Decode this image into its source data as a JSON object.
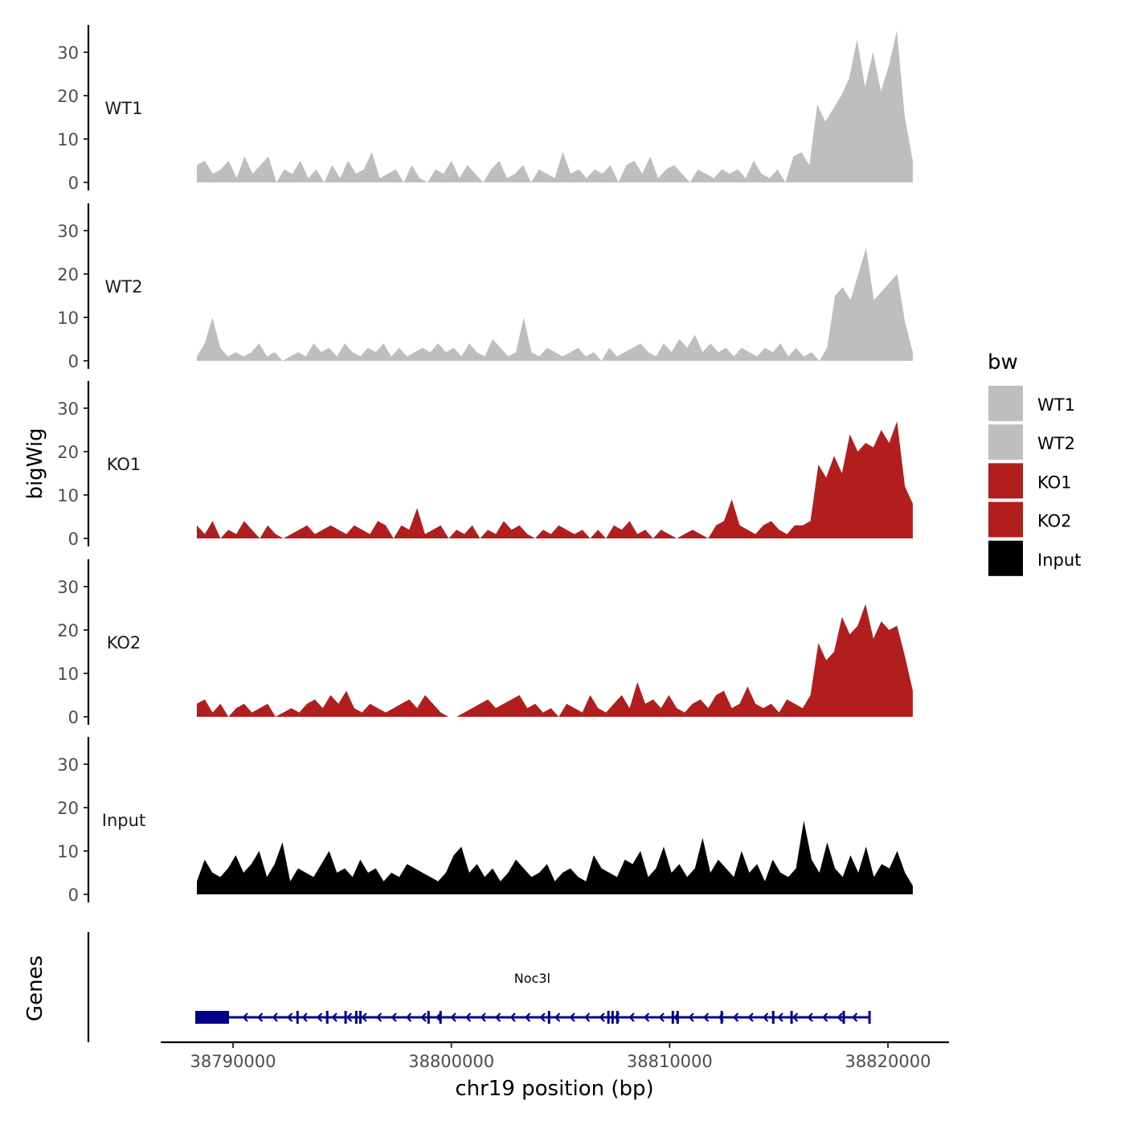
{
  "chart_data": {
    "type": "area",
    "title": "",
    "xlabel": "chr19 position (bp)",
    "ylabel": "bigWig",
    "gene_panel_label": "Genes",
    "xlim": [
      38787900,
      38823000
    ],
    "x_ticks": [
      38790000,
      38800000,
      38810000,
      38820000
    ],
    "x_tick_labels": [
      "38790000",
      "38800000",
      "38810000",
      "38820000"
    ],
    "ylim": [
      0,
      36
    ],
    "y_ticks": [
      0,
      10,
      20,
      30
    ],
    "y_tick_labels": [
      "0",
      "10",
      "20",
      "30"
    ],
    "data_start": 38788344,
    "data_end": 38821137,
    "legend": {
      "title": "bw",
      "position": "right",
      "entries": [
        "WT1",
        "WT2",
        "KO1",
        "KO2",
        "Input"
      ]
    },
    "series": [
      {
        "name": "WT1",
        "color": "#bebebe",
        "values": [
          4,
          5,
          2,
          3,
          5,
          1,
          6,
          2,
          4,
          6,
          0,
          3,
          2,
          5,
          1,
          3,
          0,
          4,
          1,
          5,
          2,
          3,
          7,
          1,
          2,
          3,
          0,
          4,
          1,
          0,
          3,
          2,
          5,
          1,
          4,
          2,
          0,
          3,
          5,
          1,
          2,
          4,
          0,
          3,
          2,
          1,
          7,
          2,
          3,
          1,
          3,
          2,
          4,
          0,
          4,
          5,
          2,
          6,
          1,
          3,
          4,
          2,
          0,
          3,
          2,
          1,
          3,
          2,
          3,
          1,
          5,
          2,
          1,
          3,
          0,
          6,
          7,
          4,
          18,
          14,
          17,
          20,
          24,
          33,
          22,
          30,
          21,
          27,
          35,
          15,
          5
        ]
      },
      {
        "name": "WT2",
        "color": "#bebebe",
        "values": [
          1,
          4,
          10,
          3,
          1,
          2,
          1,
          2,
          4,
          1,
          2,
          0,
          1,
          2,
          1,
          4,
          2,
          3,
          1,
          4,
          2,
          1,
          3,
          2,
          4,
          1,
          3,
          1,
          2,
          3,
          2,
          4,
          2,
          3,
          1,
          4,
          2,
          1,
          5,
          3,
          1,
          2,
          10,
          2,
          1,
          3,
          2,
          1,
          2,
          3,
          1,
          2,
          0,
          3,
          1,
          2,
          3,
          4,
          2,
          1,
          4,
          2,
          5,
          3,
          6,
          2,
          4,
          2,
          3,
          1,
          3,
          2,
          1,
          3,
          2,
          4,
          1,
          3,
          1,
          2,
          0,
          3,
          15,
          17,
          14,
          20,
          26,
          14,
          16,
          18,
          20,
          9,
          2
        ]
      },
      {
        "name": "KO1",
        "color": "#b21e1e",
        "values": [
          3,
          1,
          4,
          0,
          2,
          1,
          4,
          2,
          0,
          3,
          1,
          0,
          1,
          2,
          3,
          1,
          2,
          3,
          2,
          1,
          3,
          2,
          1,
          4,
          3,
          0,
          3,
          2,
          7,
          1,
          2,
          3,
          0,
          2,
          1,
          3,
          0,
          2,
          1,
          4,
          2,
          3,
          1,
          0,
          2,
          1,
          3,
          2,
          1,
          2,
          0,
          2,
          0,
          3,
          2,
          4,
          1,
          2,
          0,
          2,
          1,
          0,
          1,
          2,
          1,
          0,
          3,
          4,
          9,
          3,
          2,
          1,
          3,
          4,
          2,
          1,
          3,
          3,
          4,
          17,
          14,
          19,
          15,
          24,
          20,
          22,
          21,
          25,
          22,
          27,
          12,
          8
        ]
      },
      {
        "name": "KO2",
        "color": "#b21e1e",
        "values": [
          3,
          4,
          1,
          3,
          0,
          2,
          3,
          1,
          2,
          3,
          0,
          1,
          2,
          1,
          3,
          4,
          2,
          5,
          3,
          6,
          2,
          1,
          3,
          2,
          1,
          2,
          3,
          4,
          2,
          5,
          3,
          1,
          0,
          0,
          1,
          2,
          3,
          4,
          2,
          3,
          4,
          5,
          2,
          3,
          1,
          2,
          0,
          3,
          2,
          1,
          5,
          2,
          1,
          3,
          5,
          2,
          8,
          3,
          4,
          2,
          5,
          2,
          1,
          3,
          4,
          2,
          5,
          6,
          2,
          3,
          7,
          3,
          2,
          3,
          1,
          4,
          3,
          2,
          5,
          17,
          13,
          15,
          23,
          19,
          21,
          26,
          18,
          22,
          20,
          21,
          14,
          6
        ]
      },
      {
        "name": "Input",
        "color": "#000000",
        "values": [
          3,
          8,
          5,
          4,
          6,
          9,
          5,
          7,
          10,
          4,
          7,
          12,
          3,
          6,
          5,
          4,
          7,
          10,
          5,
          6,
          4,
          8,
          5,
          6,
          3,
          5,
          4,
          7,
          6,
          5,
          4,
          3,
          5,
          9,
          11,
          5,
          7,
          4,
          6,
          3,
          5,
          8,
          6,
          4,
          5,
          7,
          3,
          5,
          6,
          4,
          3,
          9,
          6,
          5,
          4,
          8,
          7,
          10,
          4,
          6,
          11,
          5,
          7,
          4,
          6,
          13,
          5,
          8,
          6,
          4,
          10,
          5,
          7,
          3,
          8,
          5,
          4,
          6,
          17,
          8,
          5,
          12,
          6,
          4,
          9,
          5,
          11,
          4,
          7,
          6,
          10,
          5,
          2
        ]
      }
    ],
    "genes": [
      {
        "name": "Noc3l",
        "strand": "-",
        "start": 38788270,
        "end": 38819146,
        "color": "#00008b",
        "exons": [
          [
            38788270,
            38789816
          ],
          [
            38792900,
            38793000
          ],
          [
            38794260,
            38794350
          ],
          [
            38795100,
            38795200
          ],
          [
            38795590,
            38795670
          ],
          [
            38795780,
            38795850
          ],
          [
            38798900,
            38798990
          ],
          [
            38799450,
            38799530
          ],
          [
            38804420,
            38804500
          ],
          [
            38807140,
            38807230
          ],
          [
            38807330,
            38807410
          ],
          [
            38807550,
            38807630
          ],
          [
            38810090,
            38810170
          ],
          [
            38810310,
            38810390
          ],
          [
            38812330,
            38812420
          ],
          [
            38814690,
            38814770
          ],
          [
            38815530,
            38815620
          ],
          [
            38817920,
            38818010
          ],
          [
            38819100,
            38819146
          ]
        ]
      }
    ]
  }
}
